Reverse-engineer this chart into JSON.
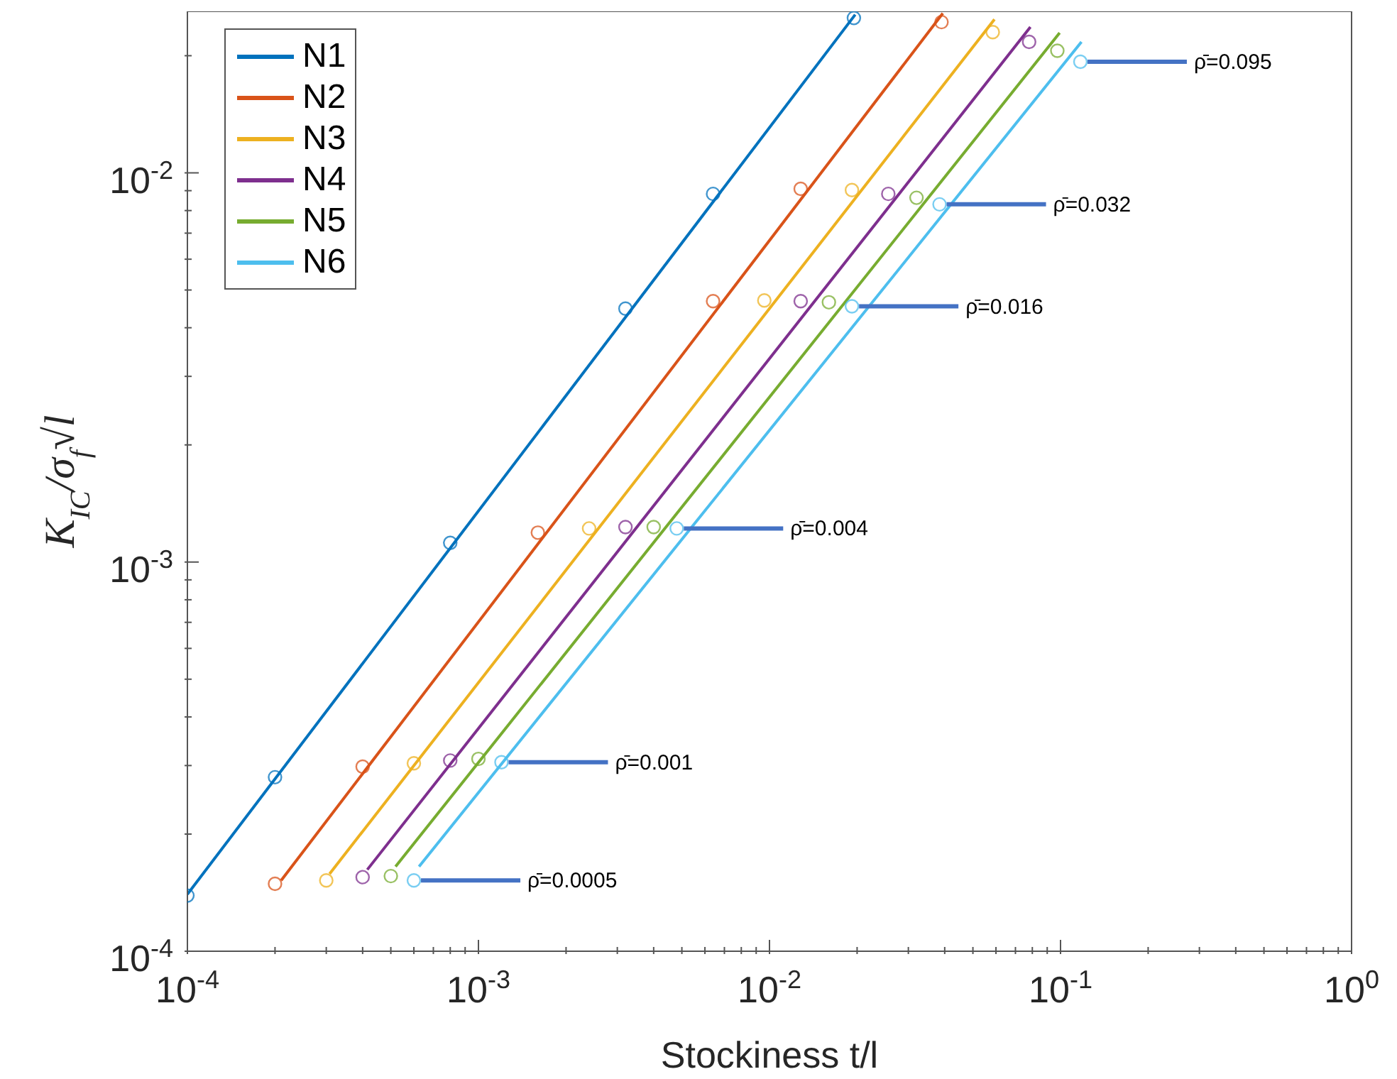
{
  "chart_data": {
    "type": "scatter",
    "xlabel": "Stockiness t/l",
    "ylabel": "K$_{IC}$/σ$_{f}$√l",
    "log": "xy",
    "legend": "top left",
    "xlim": [
      0.0001,
      1
    ],
    "ylim": [
      0.0001,
      0.026
    ],
    "xticks": [
      {
        "value": 0.0001,
        "label": "10$^{-4}$"
      },
      {
        "value": 0.0002,
        "label": null
      },
      {
        "value": 0.0003,
        "label": null
      },
      {
        "value": 0.0004,
        "label": null
      },
      {
        "value": 0.0005,
        "label": null
      },
      {
        "value": 0.0006,
        "label": null
      },
      {
        "value": 0.0007,
        "label": null
      },
      {
        "value": 0.0008,
        "label": null
      },
      {
        "value": 0.0009,
        "label": null
      },
      {
        "value": 0.001,
        "label": "10$^{-3}$"
      },
      {
        "value": 0.002,
        "label": null
      },
      {
        "value": 0.003,
        "label": null
      },
      {
        "value": 0.004,
        "label": null
      },
      {
        "value": 0.005,
        "label": null
      },
      {
        "value": 0.006,
        "label": null
      },
      {
        "value": 0.007,
        "label": null
      },
      {
        "value": 0.008,
        "label": null
      },
      {
        "value": 0.009,
        "label": null
      },
      {
        "value": 0.01,
        "label": "10$^{-2}$"
      },
      {
        "value": 0.02,
        "label": null
      },
      {
        "value": 0.03,
        "label": null
      },
      {
        "value": 0.04,
        "label": null
      },
      {
        "value": 0.05,
        "label": null
      },
      {
        "value": 0.06,
        "label": null
      },
      {
        "value": 0.07,
        "label": null
      },
      {
        "value": 0.08,
        "label": null
      },
      {
        "value": 0.09,
        "label": null
      },
      {
        "value": 0.1,
        "label": "10$^{-1}$"
      },
      {
        "value": 0.2,
        "label": null
      },
      {
        "value": 0.3,
        "label": null
      },
      {
        "value": 0.4,
        "label": null
      },
      {
        "value": 0.5,
        "label": null
      },
      {
        "value": 0.6,
        "label": null
      },
      {
        "value": 0.7,
        "label": null
      },
      {
        "value": 0.8,
        "label": null
      },
      {
        "value": 0.9,
        "label": null
      },
      {
        "value": 1,
        "label": "10$^{0}$"
      }
    ],
    "yticks": [
      {
        "value": 0.0001,
        "label": "10$^{-4}$"
      },
      {
        "value": 0.0002,
        "label": null
      },
      {
        "value": 0.0003,
        "label": null
      },
      {
        "value": 0.0004,
        "label": null
      },
      {
        "value": 0.0005,
        "label": null
      },
      {
        "value": 0.0006,
        "label": null
      },
      {
        "value": 0.0007,
        "label": null
      },
      {
        "value": 0.0008,
        "label": null
      },
      {
        "value": 0.0009,
        "label": null
      },
      {
        "value": 0.001,
        "label": "10$^{-3}$"
      },
      {
        "value": 0.002,
        "label": null
      },
      {
        "value": 0.003,
        "label": null
      },
      {
        "value": 0.004,
        "label": null
      },
      {
        "value": 0.005,
        "label": null
      },
      {
        "value": 0.006,
        "label": null
      },
      {
        "value": 0.007,
        "label": null
      },
      {
        "value": 0.008,
        "label": null
      },
      {
        "value": 0.009,
        "label": null
      },
      {
        "value": 0.01,
        "label": "10$^{-2}$"
      },
      {
        "value": 0.02,
        "label": null
      }
    ],
    "series": [
      {
        "name": "N1",
        "type": "line",
        "marker": "none",
        "color": "#0072bd",
        "x": [
          0.0001,
          0.0197
        ],
        "values": [
          0.00014,
          0.0255
        ]
      },
      {
        "name": "N2",
        "type": "line",
        "marker": "none",
        "color": "#d95319",
        "x": [
          0.00021,
          0.0394
        ],
        "values": [
          0.000152,
          0.0257
        ]
      },
      {
        "name": "N3",
        "type": "line",
        "marker": "none",
        "color": "#edb120",
        "x": [
          0.000308,
          0.0593
        ],
        "values": [
          0.000158,
          0.0248
        ]
      },
      {
        "name": "N4",
        "type": "line",
        "marker": "none",
        "color": "#7e2f8e",
        "x": [
          0.000415,
          0.0788
        ],
        "values": [
          0.000162,
          0.0237
        ]
      },
      {
        "name": "N5",
        "type": "line",
        "marker": "none",
        "color": "#77ac30",
        "x": [
          0.000519,
          0.0993
        ],
        "values": [
          0.000165,
          0.0229
        ]
      },
      {
        "name": "N6",
        "type": "line",
        "marker": "none",
        "color": "#4dbeee",
        "x": [
          0.000625,
          0.118
        ],
        "values": [
          0.000165,
          0.0217
        ]
      },
      {
        "type": "scatter",
        "marker": "circle",
        "color": "#0072bd",
        "x": [
          0.0001,
          0.0002,
          0.0008,
          0.0032,
          0.0064,
          0.0195
        ],
        "values": [
          0.000139,
          0.00028,
          0.00112,
          0.00448,
          0.00883,
          0.025
        ]
      },
      {
        "type": "scatter",
        "marker": "circle",
        "color": "#d95319",
        "x": [
          0.0002,
          0.0004,
          0.0016,
          0.0064,
          0.0128,
          0.039
        ],
        "values": [
          0.000149,
          0.000298,
          0.00119,
          0.00468,
          0.0091,
          0.0244
        ]
      },
      {
        "type": "scatter",
        "marker": "circle",
        "color": "#edb120",
        "x": [
          0.0003,
          0.0006,
          0.0024,
          0.0096,
          0.0192,
          0.0585
        ],
        "values": [
          0.000152,
          0.000304,
          0.00122,
          0.0047,
          0.00903,
          0.023
        ]
      },
      {
        "type": "scatter",
        "marker": "circle",
        "color": "#7e2f8e",
        "x": [
          0.0004,
          0.0008,
          0.0032,
          0.0128,
          0.0256,
          0.078
        ],
        "values": [
          0.000155,
          0.000309,
          0.00123,
          0.00468,
          0.00883,
          0.0217
        ]
      },
      {
        "type": "scatter",
        "marker": "circle",
        "color": "#77ac30",
        "x": [
          0.0005,
          0.001,
          0.004,
          0.016,
          0.032,
          0.0975
        ],
        "values": [
          0.000156,
          0.000312,
          0.00123,
          0.00465,
          0.00863,
          0.0206
        ]
      },
      {
        "type": "scatter",
        "marker": "circle",
        "color": "#4dbeee",
        "x": [
          0.0006,
          0.0012,
          0.0048,
          0.0192,
          0.0384,
          0.117
        ],
        "values": [
          0.000152,
          0.000306,
          0.00122,
          0.00454,
          0.0083,
          0.0193
        ]
      }
    ],
    "annotations": [
      {
        "text": "ρ̄=0.0005",
        "x": 0.0006,
        "y": 0.000152
      },
      {
        "text": "ρ̄=0.001",
        "x": 0.0012,
        "y": 0.000306
      },
      {
        "text": "ρ̄=0.004",
        "x": 0.0048,
        "y": 0.00122
      },
      {
        "text": "ρ̄=0.016",
        "x": 0.0192,
        "y": 0.00454
      },
      {
        "text": "ρ̄=0.032",
        "x": 0.0384,
        "y": 0.0083
      },
      {
        "text": "ρ̄=0.095",
        "x": 0.117,
        "y": 0.0193
      }
    ]
  }
}
